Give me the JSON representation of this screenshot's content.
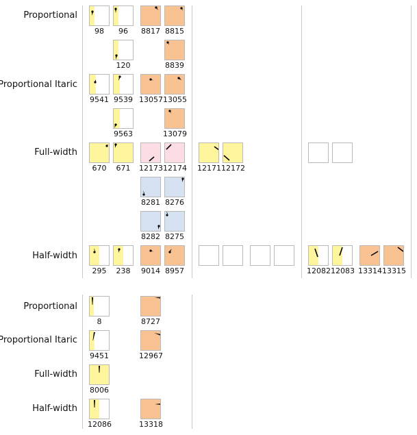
{
  "colors": {
    "yellow": "#fff59d",
    "orange": "#f8c293",
    "pink": "#fbdde3",
    "blue": "#d6e2f1",
    "white": "#ffffff",
    "border": "#b9b9b9",
    "divider": "#c8c8c8"
  },
  "labels": {
    "r1": "Proportional",
    "r2": "Proportional Itaric",
    "r3": "Full-width",
    "r4": "Half-width",
    "r5": "Proportional",
    "r6": "Proportional Itaric",
    "r7": "Full-width",
    "r8": "Half-width"
  },
  "codes": {
    "c98": "98",
    "c96": "96",
    "c8817": "8817",
    "c8815": "8815",
    "c120": "120",
    "c8839": "8839",
    "c9541": "9541",
    "c9539": "9539",
    "c13057": "13057",
    "c13055": "13055",
    "c9563": "9563",
    "c13079": "13079",
    "c670": "670",
    "c671": "671",
    "c12173": "12173",
    "c12174": "12174",
    "c12171": "12171",
    "c12172": "12172",
    "c8281": "8281",
    "c8276": "8276",
    "c8282": "8282",
    "c8275": "8275",
    "c295": "295",
    "c238": "238",
    "c9014": "9014",
    "c8957": "8957",
    "c12082": "12082",
    "c12083": "12083",
    "c13314": "13314",
    "c13315": "13315",
    "c8": "8",
    "c8727": "8727",
    "c9451": "9451",
    "c12967": "12967",
    "c8006": "8006",
    "c12086": "12086",
    "c13318": "13318"
  }
}
